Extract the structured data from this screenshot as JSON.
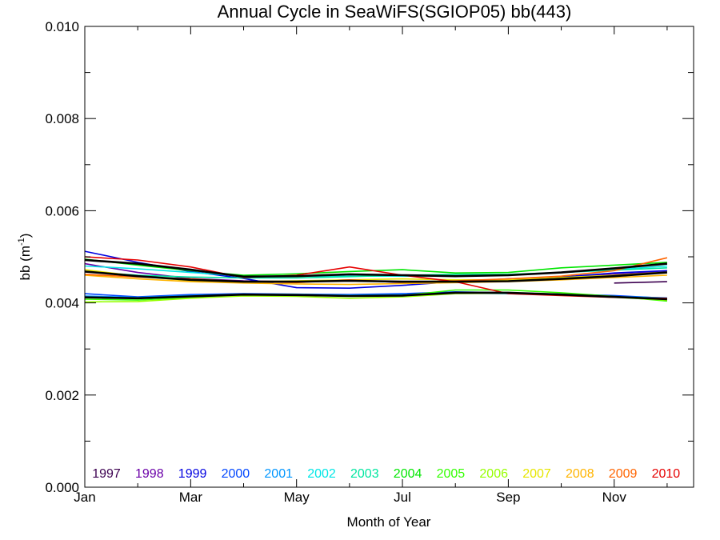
{
  "chart_data": {
    "type": "line",
    "title": "Annual Cycle in SeaWiFS(SGIOP05) bb(443)",
    "xlabel": "Month of Year",
    "ylabel_main": "bb (m",
    "ylabel_sup": "-1",
    "ylabel_end": ")",
    "xlim": [
      1,
      12.5
    ],
    "ylim": [
      0,
      0.01
    ],
    "xticks": [
      {
        "value": 1,
        "label": "Jan"
      },
      {
        "value": 3,
        "label": "Mar"
      },
      {
        "value": 5,
        "label": "May"
      },
      {
        "value": 7,
        "label": "Jul"
      },
      {
        "value": 9,
        "label": "Sep"
      },
      {
        "value": 11,
        "label": "Nov"
      }
    ],
    "yticks": [
      {
        "value": 0.0,
        "label": "0.000"
      },
      {
        "value": 0.002,
        "label": "0.002"
      },
      {
        "value": 0.004,
        "label": "0.004"
      },
      {
        "value": 0.006,
        "label": "0.006"
      },
      {
        "value": 0.008,
        "label": "0.008"
      },
      {
        "value": 0.01,
        "label": "0.010"
      }
    ],
    "grid": false,
    "legend": "bottom",
    "x": [
      1,
      2,
      3,
      4,
      5,
      6,
      7,
      8,
      9,
      10,
      11,
      12
    ],
    "series": [
      {
        "name": "1997",
        "color": "#3c0050",
        "values": [
          null,
          null,
          null,
          null,
          null,
          null,
          null,
          null,
          null,
          null,
          0.00443,
          0.00446
        ]
      },
      {
        "name": "1998",
        "color": "#6a00a8",
        "values": [
          0.00485,
          0.00466,
          0.00453,
          0.00448,
          0.00446,
          0.0045,
          0.00444,
          0.00446,
          0.0045,
          0.00455,
          0.00462,
          0.00468
        ]
      },
      {
        "name": "1999",
        "color": "#0000e0",
        "values": [
          0.00512,
          0.00488,
          0.00468,
          0.00453,
          0.00433,
          0.00432,
          0.00438,
          0.00446,
          0.00452,
          0.00456,
          0.00465,
          0.0047
        ]
      },
      {
        "name": "2000",
        "color": "#0046ff",
        "values": [
          0.0042,
          0.00413,
          0.00418,
          0.0042,
          0.00419,
          0.00418,
          0.0042,
          0.00424,
          0.00422,
          0.00419,
          0.00416,
          0.0041
        ]
      },
      {
        "name": "2001",
        "color": "#0096ff",
        "values": [
          0.00415,
          0.00412,
          0.00416,
          0.00419,
          0.00418,
          0.00417,
          0.00418,
          0.00421,
          0.0042,
          0.00418,
          0.00414,
          0.00411
        ]
      },
      {
        "name": "2002",
        "color": "#00e6e6",
        "values": [
          0.0048,
          0.00474,
          0.00466,
          0.00458,
          0.00458,
          0.00458,
          0.00458,
          0.00458,
          0.0046,
          0.00466,
          0.00472,
          0.0048
        ]
      },
      {
        "name": "2003",
        "color": "#00e6a0",
        "values": [
          0.00468,
          0.0046,
          0.00456,
          0.00454,
          0.00454,
          0.00457,
          0.0046,
          0.00462,
          0.00462,
          0.00466,
          0.00471,
          0.00476
        ]
      },
      {
        "name": "2004",
        "color": "#00e600",
        "values": [
          0.00495,
          0.00482,
          0.0047,
          0.0046,
          0.00463,
          0.00468,
          0.00472,
          0.00465,
          0.00466,
          0.00476,
          0.00482,
          0.00488
        ]
      },
      {
        "name": "2005",
        "color": "#32ff00",
        "values": [
          0.00408,
          0.00406,
          0.00412,
          0.00418,
          0.00418,
          0.00415,
          0.00416,
          0.00428,
          0.00428,
          0.00422,
          0.00414,
          0.00404
        ]
      },
      {
        "name": "2006",
        "color": "#96ff00",
        "values": [
          0.00402,
          0.00403,
          0.0041,
          0.00415,
          0.00414,
          0.0041,
          0.00413,
          0.0042,
          0.00421,
          0.00418,
          0.00412,
          0.00406
        ]
      },
      {
        "name": "2007",
        "color": "#e6e600",
        "values": [
          0.00472,
          0.00458,
          0.00448,
          0.00446,
          0.00448,
          0.0045,
          0.00452,
          0.0045,
          0.0045,
          0.00455,
          0.0046,
          0.00467
        ]
      },
      {
        "name": "2008",
        "color": "#ffb400",
        "values": [
          0.0046,
          0.00452,
          0.00446,
          0.00443,
          0.00441,
          0.0044,
          0.00442,
          0.00444,
          0.00446,
          0.0045,
          0.00455,
          0.0046
        ]
      },
      {
        "name": "2009",
        "color": "#ff6400",
        "values": [
          0.00462,
          0.00456,
          0.00452,
          0.00446,
          0.00444,
          0.0045,
          0.00445,
          0.00448,
          0.00452,
          0.00458,
          0.0047,
          0.00498
        ]
      },
      {
        "name": "2010",
        "color": "#e60000",
        "values": [
          0.005,
          0.00493,
          0.00478,
          0.00455,
          0.0046,
          0.00478,
          0.0046,
          0.00446,
          0.0042,
          0.00416,
          0.00412,
          0.0041
        ]
      },
      {
        "color": "#000000",
        "width": 2.6,
        "values": [
          0.00493,
          0.00485,
          0.00472,
          0.00457,
          0.00458,
          0.00462,
          0.0046,
          0.00458,
          0.0046,
          0.00466,
          0.00475,
          0.00485
        ]
      },
      {
        "color": "#000000",
        "width": 2.6,
        "values": [
          0.00468,
          0.00458,
          0.0045,
          0.00446,
          0.00446,
          0.00448,
          0.00446,
          0.00446,
          0.00447,
          0.00452,
          0.00458,
          0.00466
        ]
      },
      {
        "color": "#000000",
        "width": 2.6,
        "values": [
          0.00412,
          0.0041,
          0.00414,
          0.00418,
          0.00417,
          0.00415,
          0.00416,
          0.00422,
          0.00422,
          0.00418,
          0.00413,
          0.00408
        ]
      }
    ]
  }
}
